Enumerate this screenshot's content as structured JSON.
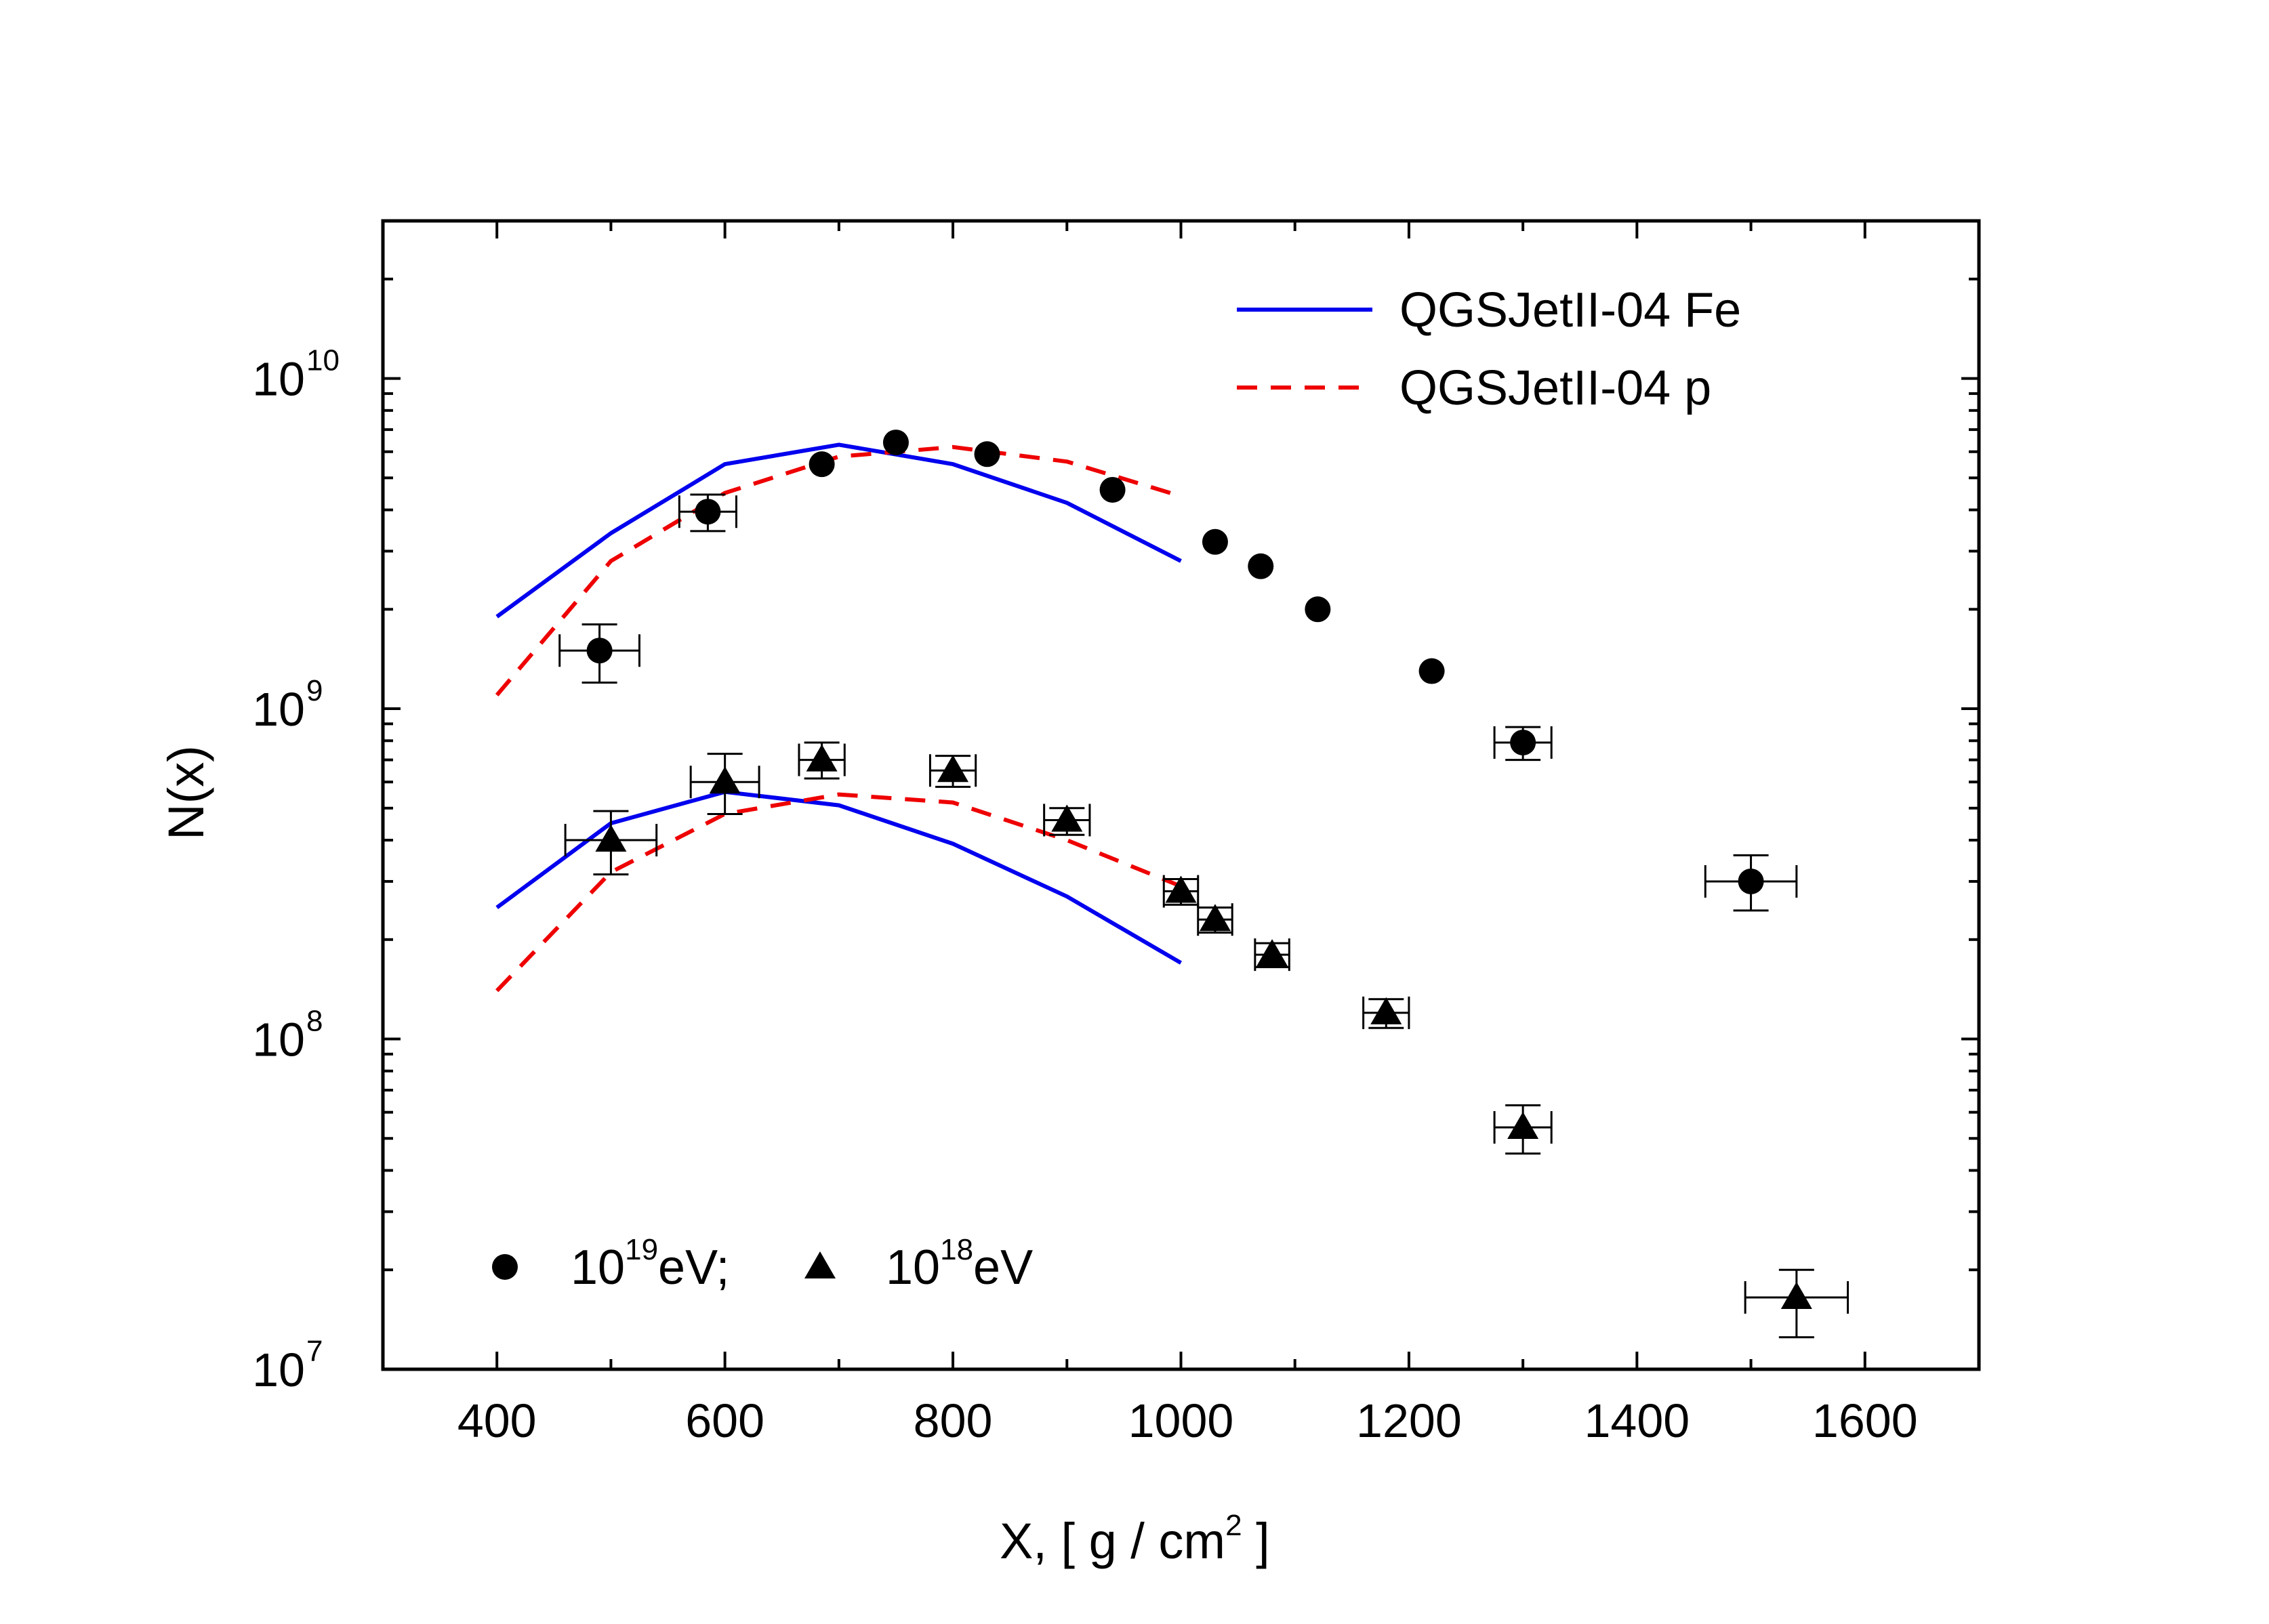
{
  "chart_data": {
    "type": "scatter",
    "xlabel": "X,  [ g / cm",
    "xlabel_sup": "2",
    "xlabel_end": " ]",
    "ylabel": "N(x)",
    "xlim": [
      300,
      1700
    ],
    "ylim": [
      10000000,
      30000000000
    ],
    "yscale": "log",
    "x_ticks": [
      400,
      600,
      800,
      1000,
      1200,
      1400,
      1600
    ],
    "x_tick_labels": [
      "400",
      "600",
      "800",
      "1000",
      "1200",
      "1400",
      "1600"
    ],
    "y_ticks": [
      {
        "value": 10000000,
        "base": "10",
        "exp": "7"
      },
      {
        "value": 100000000,
        "base": "10",
        "exp": "8"
      },
      {
        "value": 1000000000,
        "base": "10",
        "exp": "9"
      },
      {
        "value": 10000000000,
        "base": "10",
        "exp": "10"
      }
    ],
    "legend_top": [
      {
        "label": "QGSJetII-04 Fe",
        "color": "#0000ee",
        "style": "solid"
      },
      {
        "label": "QGSJetII-04 p",
        "color": "#ee0000",
        "style": "dashed"
      }
    ],
    "legend_bottom": {
      "series1_base": "10",
      "series1_exp": "19",
      "series1_unit": "eV;",
      "series2_base": "10",
      "series2_exp": "18",
      "series2_unit": "eV"
    },
    "model_series": [
      {
        "name": "QGSJetII-04 Fe (10^19 eV)",
        "color": "#0000ee",
        "style": "solid",
        "x": [
          400,
          500,
          600,
          700,
          800,
          900,
          1000
        ],
        "y": [
          1900000000,
          3400000000,
          5500000000,
          6300000000,
          5500000000,
          4200000000,
          2800000000
        ]
      },
      {
        "name": "QGSJetII-04 p (10^19 eV)",
        "color": "#ee0000",
        "style": "dashed",
        "x": [
          400,
          500,
          600,
          700,
          800,
          900,
          1000
        ],
        "y": [
          1100000000,
          2800000000,
          4500000000,
          5800000000,
          6200000000,
          5600000000,
          4400000000
        ]
      },
      {
        "name": "QGSJetII-04 Fe (10^18 eV)",
        "color": "#0000ee",
        "style": "solid",
        "x": [
          400,
          500,
          600,
          700,
          800,
          900,
          1000
        ],
        "y": [
          250000000,
          450000000,
          560000000,
          510000000,
          390000000,
          270000000,
          170000000
        ]
      },
      {
        "name": "QGSJetII-04 p (10^18 eV)",
        "color": "#ee0000",
        "style": "dashed",
        "x": [
          400,
          500,
          600,
          700,
          800,
          900,
          1000
        ],
        "y": [
          140000000,
          320000000,
          480000000,
          550000000,
          520000000,
          400000000,
          290000000
        ]
      }
    ],
    "data_series": [
      {
        "name": "10^19 eV",
        "marker": "circle",
        "points": [
          {
            "x": 490,
            "y": 1500000000,
            "xerr": 35,
            "ylo": 1200000000,
            "yhi": 1800000000
          },
          {
            "x": 585,
            "y": 3950000000,
            "xerr": 25,
            "ylo": 3450000000,
            "yhi": 4450000000
          },
          {
            "x": 685,
            "y": 5500000000
          },
          {
            "x": 750,
            "y": 6400000000
          },
          {
            "x": 830,
            "y": 5900000000
          },
          {
            "x": 940,
            "y": 4600000000
          },
          {
            "x": 1030,
            "y": 3200000000
          },
          {
            "x": 1070,
            "y": 2700000000
          },
          {
            "x": 1120,
            "y": 2000000000
          },
          {
            "x": 1220,
            "y": 1300000000
          },
          {
            "x": 1300,
            "y": 790000000,
            "xerr": 25,
            "ylo": 700000000,
            "yhi": 880000000
          },
          {
            "x": 1500,
            "y": 300000000,
            "xerr": 40,
            "ylo": 245000000,
            "yhi": 360000000
          }
        ]
      },
      {
        "name": "10^18 eV",
        "marker": "triangle",
        "points": [
          {
            "x": 500,
            "y": 400000000,
            "xerr": 40,
            "ylo": 315000000,
            "yhi": 490000000
          },
          {
            "x": 600,
            "y": 600000000,
            "xerr": 30,
            "ylo": 480000000,
            "yhi": 730000000
          },
          {
            "x": 685,
            "y": 700000000,
            "xerr": 20,
            "ylo": 615000000,
            "yhi": 790000000
          },
          {
            "x": 800,
            "y": 650000000,
            "xerr": 20,
            "ylo": 580000000,
            "yhi": 720000000
          },
          {
            "x": 900,
            "y": 460000000,
            "xerr": 20,
            "ylo": 415000000,
            "yhi": 500000000
          },
          {
            "x": 1000,
            "y": 280000000,
            "xerr": 15,
            "ylo": 255000000,
            "yhi": 305000000
          },
          {
            "x": 1030,
            "y": 230000000,
            "xerr": 15,
            "ylo": 210000000,
            "yhi": 250000000
          },
          {
            "x": 1080,
            "y": 180000000,
            "xerr": 15,
            "ylo": 165000000,
            "yhi": 195000000
          },
          {
            "x": 1180,
            "y": 120000000,
            "xerr": 20,
            "ylo": 108000000,
            "yhi": 132000000
          },
          {
            "x": 1300,
            "y": 54000000,
            "xerr": 25,
            "ylo": 45000000,
            "yhi": 63000000
          },
          {
            "x": 1540,
            "y": 16500000,
            "xerr": 45,
            "ylo": 12500000,
            "yhi": 20000000
          }
        ]
      }
    ]
  }
}
